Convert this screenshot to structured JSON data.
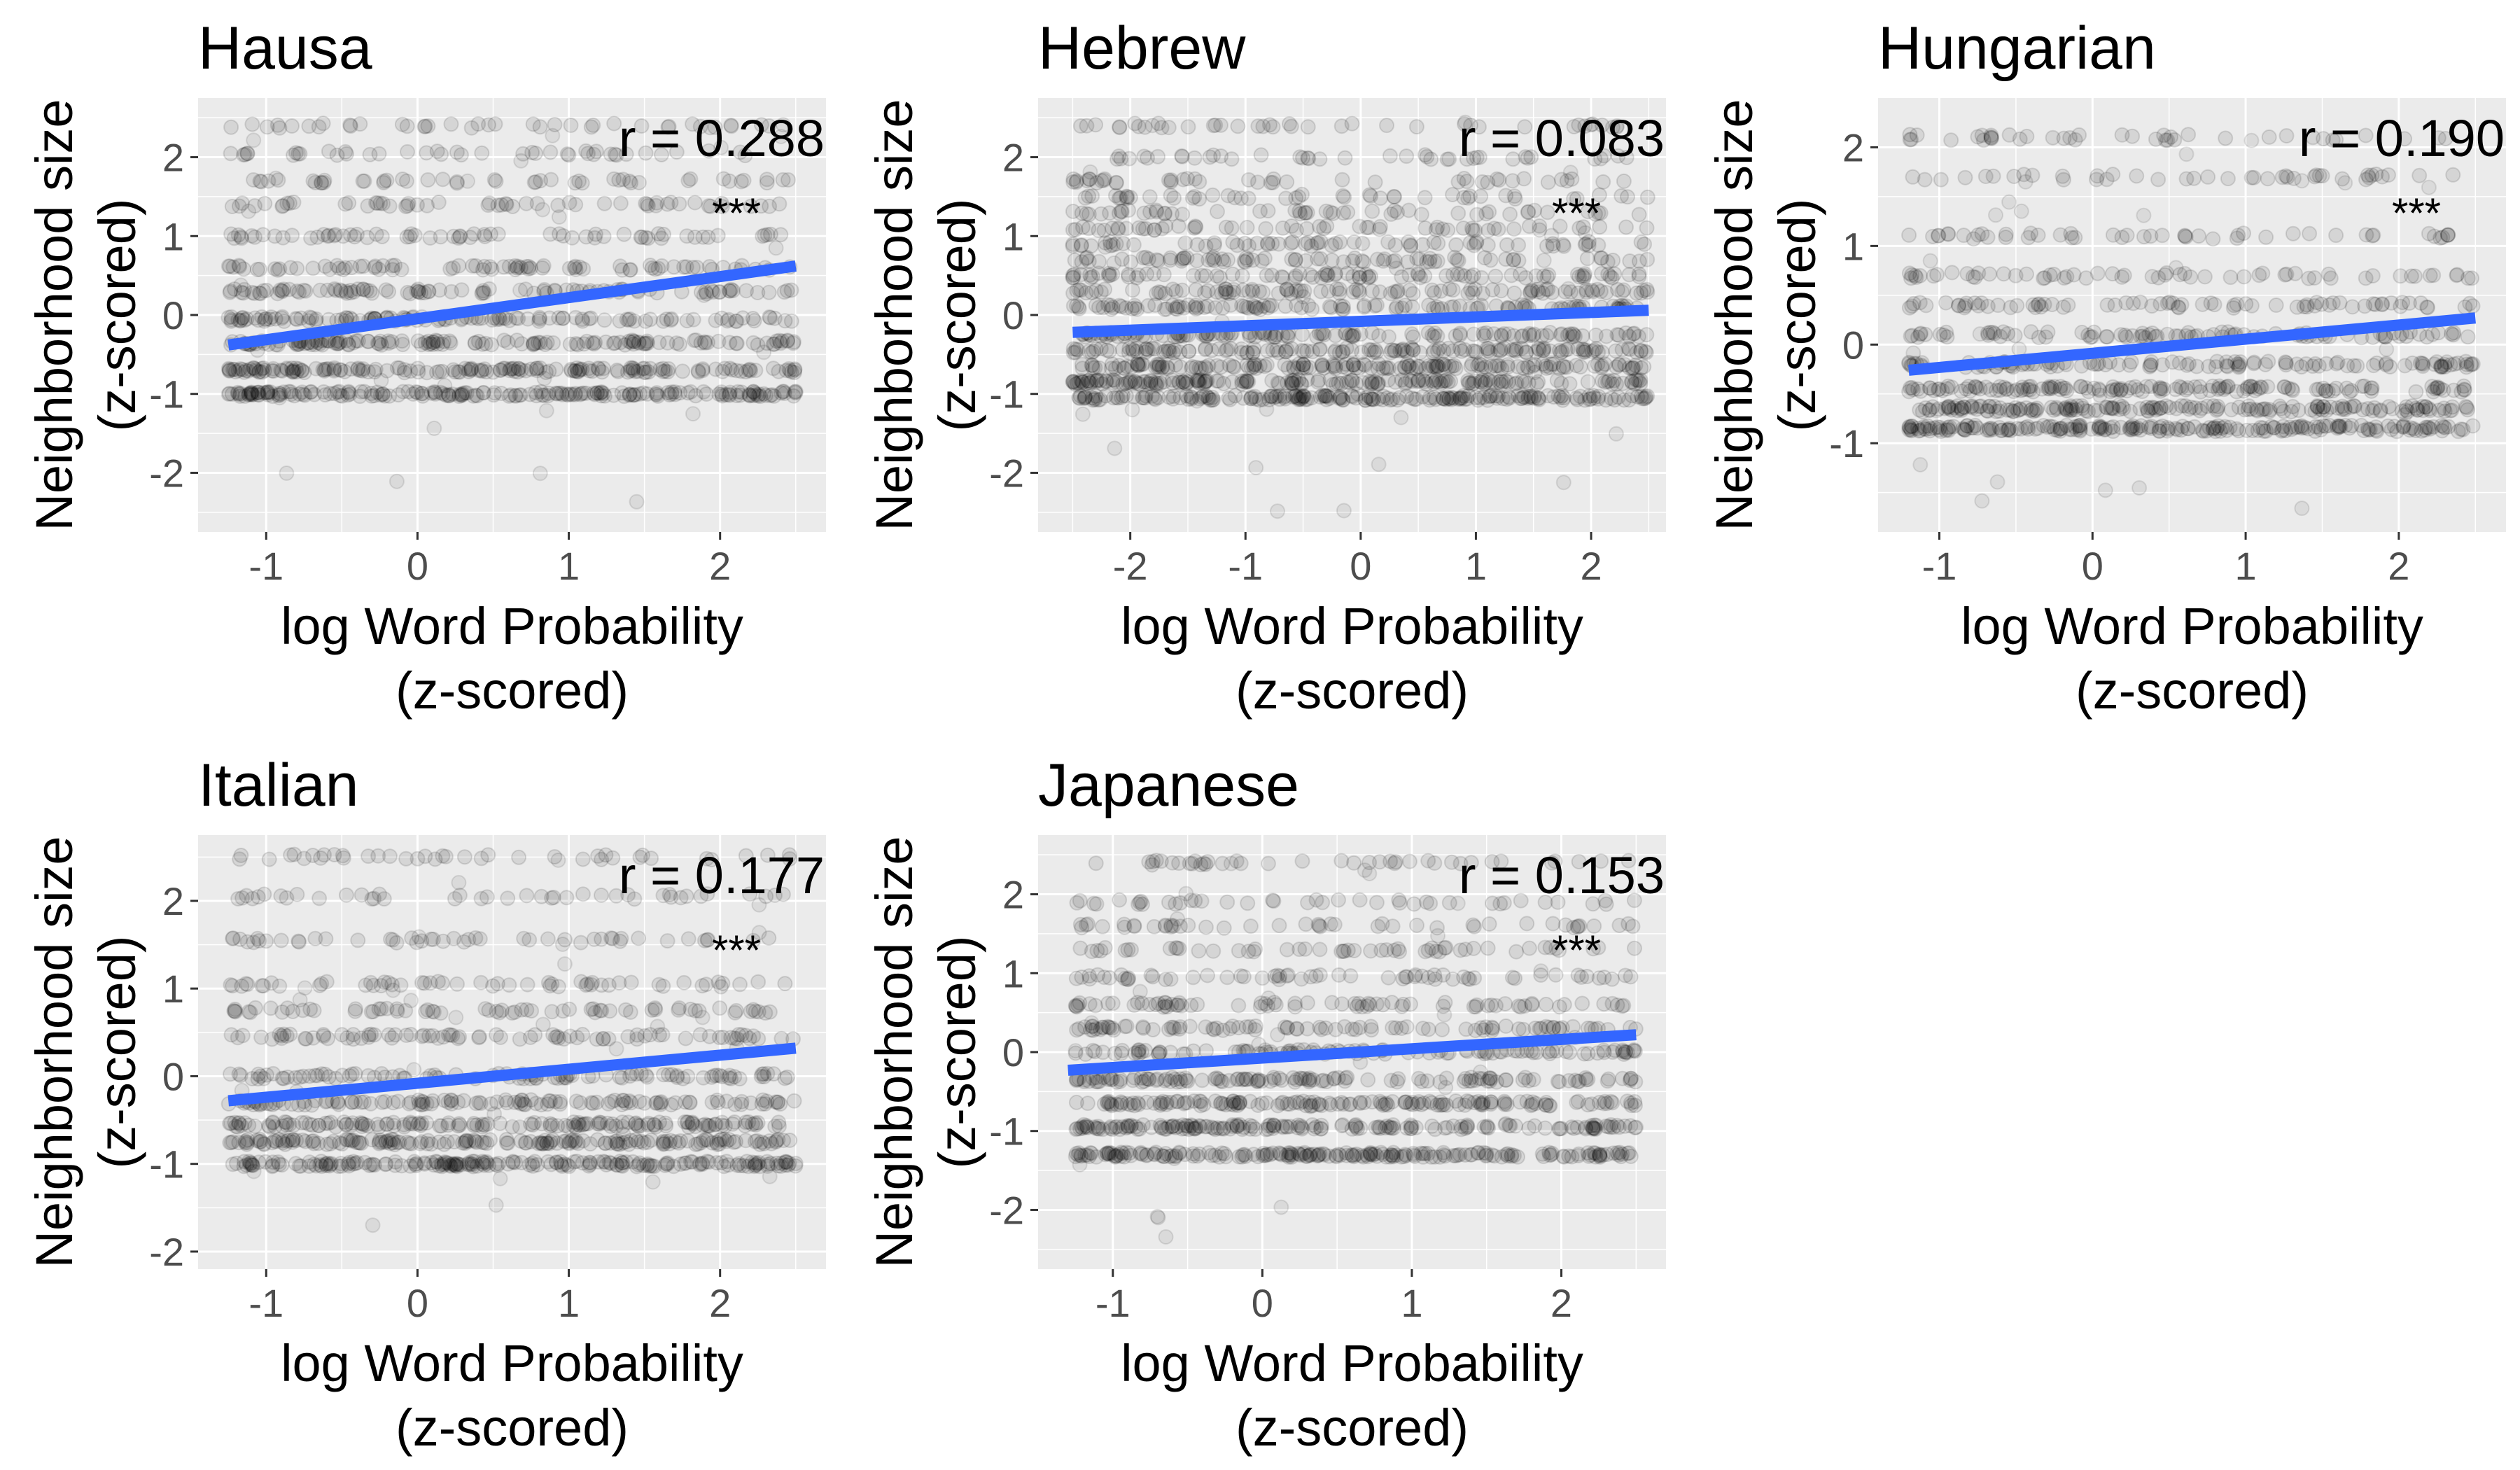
{
  "chart_data": [
    {
      "type": "scatter",
      "title": "Hausa",
      "xlabel": [
        "log Word Probability",
        "(z-scored)"
      ],
      "ylabel": [
        "Neighborhood size",
        "(z-scored)"
      ],
      "xlim": [
        -1.45,
        2.7
      ],
      "ylim": [
        -2.75,
        2.75
      ],
      "xticks": [
        -1,
        0,
        1,
        2
      ],
      "yticks": [
        -2,
        -1,
        0,
        1,
        2
      ],
      "x_range": [
        -1.25,
        2.5
      ],
      "y_levels": [
        -1.0,
        -0.7,
        -0.35,
        -0.05,
        0.3,
        0.6,
        1.0,
        1.4,
        1.7,
        2.05,
        2.4
      ],
      "regression": {
        "x": [
          -1.25,
          2.5
        ],
        "y": [
          -0.38,
          0.62
        ]
      },
      "r": "r = 0.288",
      "significance": "***",
      "grid": true,
      "point_color": "#000000",
      "line_color": "#3366ff"
    },
    {
      "type": "scatter",
      "title": "Hebrew",
      "xlabel": [
        "log Word Probability",
        "(z-scored)"
      ],
      "ylabel": [
        "Neighborhood size",
        "(z-scored)"
      ],
      "xlim": [
        -2.8,
        2.65
      ],
      "ylim": [
        -2.75,
        2.75
      ],
      "xticks": [
        -2,
        -1,
        0,
        1,
        2
      ],
      "yticks": [
        -2,
        -1,
        0,
        1,
        2
      ],
      "x_range": [
        -2.5,
        2.5
      ],
      "y_levels": [
        -1.05,
        -0.85,
        -0.65,
        -0.45,
        -0.25,
        0.1,
        0.3,
        0.5,
        0.7,
        0.9,
        1.1,
        1.3,
        1.5,
        1.7,
        2.0,
        2.4
      ],
      "regression": {
        "x": [
          -2.5,
          2.5
        ],
        "y": [
          -0.22,
          0.06
        ]
      },
      "r": "r = 0.083",
      "significance": "***",
      "grid": true,
      "point_color": "#000000",
      "line_color": "#3366ff"
    },
    {
      "type": "scatter",
      "title": "Hungarian",
      "xlabel": [
        "log Word Probability",
        "(z-scored)"
      ],
      "ylabel": [
        "Neighborhood size",
        "(z-scored)"
      ],
      "xlim": [
        -1.4,
        2.7
      ],
      "ylim": [
        -1.9,
        2.5
      ],
      "xticks": [
        -1,
        0,
        1,
        2
      ],
      "yticks": [
        -1,
        0,
        1,
        2
      ],
      "x_range": [
        -1.2,
        2.5
      ],
      "y_levels": [
        -0.85,
        -0.65,
        -0.45,
        -0.2,
        0.1,
        0.4,
        0.7,
        1.1,
        1.7,
        2.1
      ],
      "regression": {
        "x": [
          -1.2,
          2.5
        ],
        "y": [
          -0.26,
          0.27
        ]
      },
      "r": "r = 0.190",
      "significance": "***",
      "grid": true,
      "point_color": "#000000",
      "line_color": "#3366ff"
    },
    {
      "type": "scatter",
      "title": "Italian",
      "xlabel": [
        "log Word Probability",
        "(z-scored)"
      ],
      "ylabel": [
        "Neighborhood size",
        "(z-scored)"
      ],
      "xlim": [
        -1.45,
        2.7
      ],
      "ylim": [
        -2.2,
        2.75
      ],
      "xticks": [
        -1,
        0,
        1,
        2
      ],
      "yticks": [
        -2,
        -1,
        0,
        1,
        2
      ],
      "x_range": [
        -1.25,
        2.5
      ],
      "y_levels": [
        -1.0,
        -0.75,
        -0.55,
        -0.3,
        0.0,
        0.45,
        0.75,
        1.05,
        1.55,
        2.05,
        2.5
      ],
      "regression": {
        "x": [
          -1.25,
          2.5
        ],
        "y": [
          -0.28,
          0.32
        ]
      },
      "r": "r = 0.177",
      "significance": "***",
      "grid": true,
      "point_color": "#000000",
      "line_color": "#3366ff"
    },
    {
      "type": "scatter",
      "title": "Japanese",
      "xlabel": [
        "log Word Probability",
        "(z-scored)"
      ],
      "ylabel": [
        "Neighborhood size",
        "(z-scored)"
      ],
      "xlim": [
        -1.5,
        2.7
      ],
      "ylim": [
        -2.75,
        2.75
      ],
      "xticks": [
        -1,
        0,
        1,
        2
      ],
      "yticks": [
        -2,
        -1,
        0,
        1,
        2
      ],
      "x_range": [
        -1.25,
        2.5
      ],
      "y_levels": [
        -1.3,
        -0.95,
        -0.65,
        -0.35,
        0.0,
        0.3,
        0.6,
        0.95,
        1.3,
        1.6,
        1.9,
        2.4
      ],
      "regression": {
        "x": [
          -1.3,
          2.5
        ],
        "y": [
          -0.23,
          0.22
        ]
      },
      "r": "r = 0.153",
      "significance": "***",
      "grid": true,
      "point_color": "#000000",
      "line_color": "#3366ff"
    }
  ]
}
